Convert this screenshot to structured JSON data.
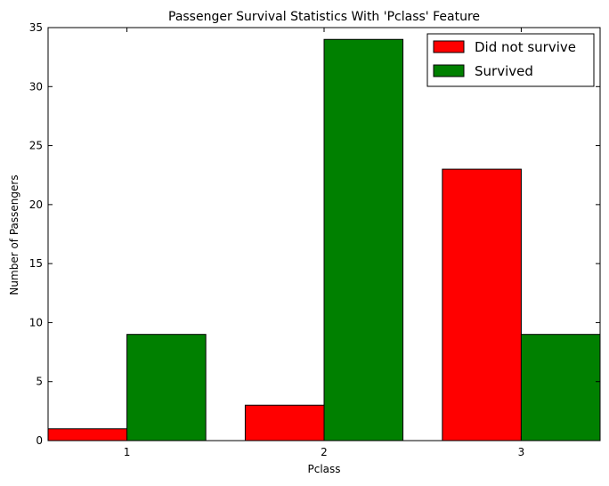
{
  "chart_data": {
    "type": "bar",
    "title": "Passenger Survival Statistics With 'Pclass' Feature",
    "xlabel": "Pclass",
    "ylabel": "Number of Passengers",
    "categories": [
      "1",
      "2",
      "3"
    ],
    "series": [
      {
        "name": "Did not survive",
        "values": [
          1,
          3,
          23
        ],
        "color": "#ff0000"
      },
      {
        "name": "Survived",
        "values": [
          9,
          34,
          9
        ],
        "color": "#008000"
      }
    ],
    "ylim": [
      0,
      35
    ],
    "yticks": [
      "0",
      "5",
      "10",
      "15",
      "20",
      "25",
      "30",
      "35"
    ],
    "grid": false,
    "legend_position": "top-right"
  }
}
